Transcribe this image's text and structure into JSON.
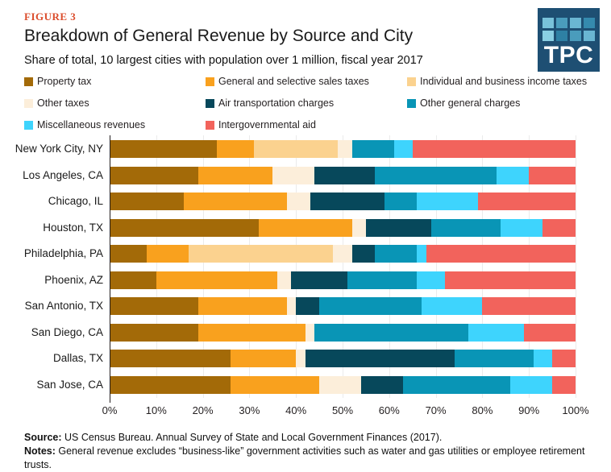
{
  "figure_label": "FIGURE 3",
  "title": "Breakdown of General Revenue by Source and City",
  "subtitle": "Share of total, 10 largest cities with population over 1 million, fiscal year 2017",
  "logo": {
    "text": "TPC",
    "background": "#1e4f73",
    "square_colors": [
      "#79c2da",
      "#4a9cbc",
      "#6ab6d2",
      "#358aae",
      "#8acfe3",
      "#2e80a4",
      "#4a9cbc",
      "#6ab6d2"
    ]
  },
  "accent_color": "#db4d2c",
  "chart_data": {
    "type": "bar",
    "orientation": "horizontal",
    "stacked": true,
    "units": "percent of total general revenue",
    "xlim": [
      0,
      100
    ],
    "x_ticks": [
      "0%",
      "10%",
      "20%",
      "30%",
      "40%",
      "50%",
      "60%",
      "70%",
      "80%",
      "90%",
      "100%"
    ],
    "grid": true,
    "legend_position": "top",
    "categories": [
      "New York City, NY",
      "Los Angeles, CA",
      "Chicago, IL",
      "Houston, TX",
      "Philadelphia, PA",
      "Phoenix, AZ",
      "San Antonio, TX",
      "San Diego, CA",
      "Dallas, TX",
      "San Jose, CA"
    ],
    "series": [
      {
        "name": "Property tax",
        "color": "#a36a08",
        "values": [
          23,
          19,
          16,
          32,
          8,
          10,
          19,
          19,
          26,
          26
        ]
      },
      {
        "name": "General and selective sales taxes",
        "color": "#f9a11e",
        "values": [
          8,
          16,
          22,
          20,
          9,
          26,
          19,
          23,
          14,
          19
        ]
      },
      {
        "name": "Individual and business income taxes",
        "color": "#fbd28f",
        "values": [
          18,
          0,
          0,
          0,
          31,
          0,
          0,
          0,
          0,
          0
        ]
      },
      {
        "name": "Other taxes",
        "color": "#fceeda",
        "values": [
          3,
          9,
          5,
          3,
          4,
          3,
          2,
          2,
          2,
          9
        ]
      },
      {
        "name": "Air transportation charges",
        "color": "#07485b",
        "values": [
          0,
          13,
          16,
          14,
          5,
          12,
          5,
          0,
          32,
          9
        ]
      },
      {
        "name": "Other general charges",
        "color": "#0995b6",
        "values": [
          9,
          26,
          7,
          15,
          9,
          15,
          22,
          33,
          17,
          23
        ]
      },
      {
        "name": "Miscellaneous revenues",
        "color": "#3ed4fd",
        "values": [
          4,
          7,
          13,
          9,
          2,
          6,
          13,
          12,
          4,
          9
        ]
      },
      {
        "name": "Intergovernmental aid",
        "color": "#f2635c",
        "values": [
          35,
          10,
          21,
          7,
          32,
          28,
          20,
          11,
          5,
          5
        ]
      }
    ]
  },
  "footer": {
    "source_label": "Source:",
    "source_text": " US Census Bureau. Annual Survey of State and Local Government Finances (2017).",
    "notes_label": "Notes:",
    "notes_text": " General revenue excludes “business-like” government activities such as water and gas utilities or employee retirement trusts."
  }
}
